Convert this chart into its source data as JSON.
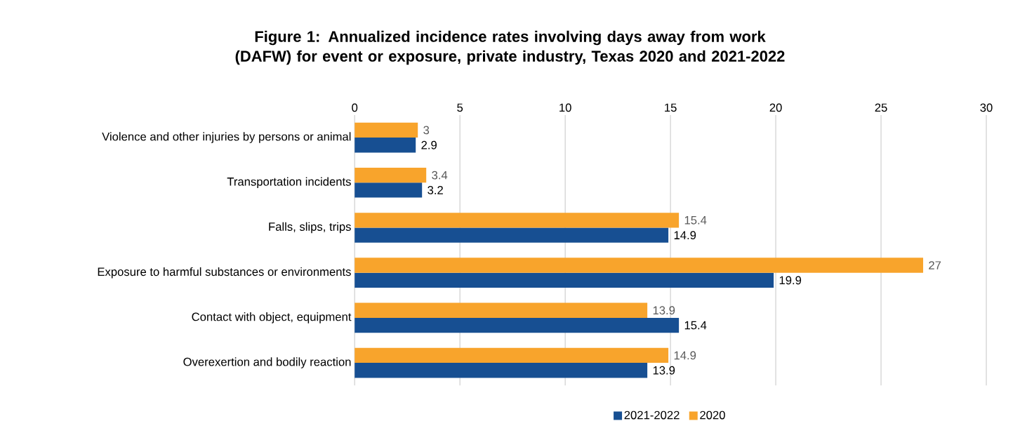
{
  "chart_data": {
    "type": "bar",
    "orientation": "horizontal",
    "title": "Figure 1: Annualized incidence rates involving days away from work (DAFW) for event or exposure, private industry, Texas 2020 and 2021-2022",
    "categories": [
      "Violence and other injuries by persons or animal",
      "Transportation incidents",
      "Falls, slips, trips",
      "Exposure to harmful substances or environments",
      "Contact with object, equipment",
      "Overexertion and bodily reaction"
    ],
    "series": [
      {
        "name": "2021-2022",
        "color": "#174f92",
        "values": [
          2.9,
          3.2,
          14.9,
          19.9,
          15.4,
          13.9
        ]
      },
      {
        "name": "2020",
        "color": "#f8a42c",
        "values": [
          3,
          3.4,
          15.4,
          27,
          13.9,
          14.9
        ]
      }
    ],
    "xlim": [
      0,
      30
    ],
    "xticks": [
      0,
      5,
      10,
      15,
      20,
      25,
      30
    ],
    "grid": "x",
    "legend": "bottom",
    "data_labels": true
  }
}
